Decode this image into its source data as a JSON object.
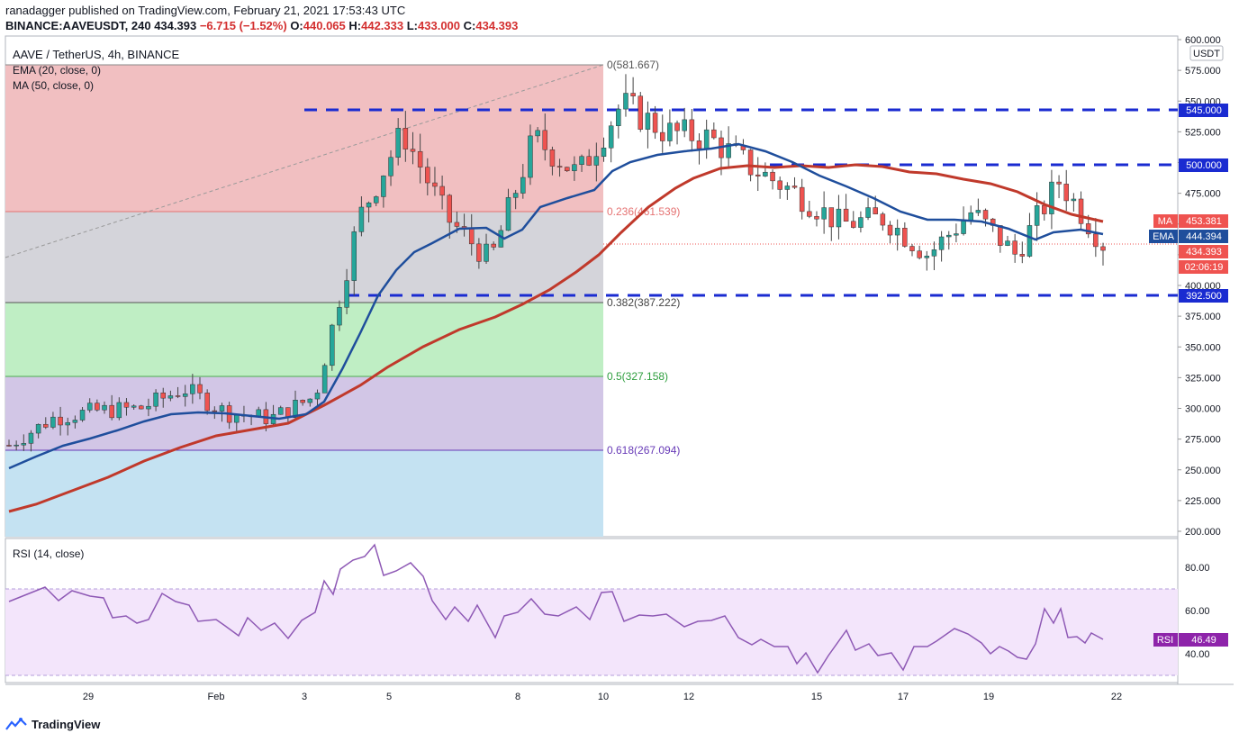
{
  "header": {
    "line1": "ranadagger published on TradingView.com, February 21, 2021 17:53:43 UTC",
    "symbol": "BINANCE:AAVEUSDT, 240",
    "last": "434.393",
    "change": "−6.715 (−1.52%)",
    "o_label": "O:",
    "o": "440.065",
    "h_label": "H:",
    "h": "442.333",
    "l_label": "L:",
    "l": "433.000",
    "c_label": "C:",
    "c": "434.393"
  },
  "legend": {
    "title": "AAVE / TetherUS, 4h, BINANCE",
    "ema": "EMA (20, close, 0)",
    "ma": "MA (50, close, 0)",
    "rsi": "RSI (14, close)"
  },
  "axis": {
    "currency": "USDT",
    "price_ticks": [
      "600.000",
      "575.000",
      "550.000",
      "525.000",
      "500.000",
      "475.000",
      "450.000",
      "425.000",
      "400.000",
      "375.000",
      "350.000",
      "325.000",
      "300.000",
      "275.000",
      "250.000",
      "225.000",
      "200.000"
    ],
    "rsi_ticks": [
      "80.00",
      "60.00",
      "40.00"
    ],
    "date_ticks": [
      "29",
      "Feb",
      "3",
      "5",
      "8",
      "10",
      "12",
      "15",
      "17",
      "19",
      "22"
    ]
  },
  "levels": {
    "l545": "545.000",
    "l500": "500.000",
    "l392": "392.500"
  },
  "badges": {
    "ma_label": "MA",
    "ma_value": "453.381",
    "ema_label": "EMA",
    "ema_value": "444.394",
    "price": "434.393",
    "timer": "02:06:19",
    "rsi_label": "RSI",
    "rsi_value": "46.49"
  },
  "fib": {
    "f0": "0(581.667)",
    "f236": "0.236(461.539)",
    "f382": "0.382(387.222)",
    "f5": "0.5(327.158)",
    "f618": "0.618(267.094)"
  },
  "colors": {
    "up": "#26a69a",
    "down": "#ef5350",
    "ema": "#1f4e9c",
    "ma": "#c0392b",
    "level": "#1a2bd1",
    "rsi": "#7e57c2"
  },
  "brand": "TradingView",
  "chart_data": {
    "type": "candlestick",
    "title": "AAVE / TetherUS, 4h, BINANCE",
    "ylim": [
      200,
      600
    ],
    "x_start": "2021-01-27",
    "x_end": "2021-02-22",
    "close_series": [
      {
        "date": "2021-01-27",
        "close": 270
      },
      {
        "date": "2021-01-28",
        "close": 292
      },
      {
        "date": "2021-01-29",
        "close": 298
      },
      {
        "date": "2021-01-30",
        "close": 300
      },
      {
        "date": "2021-01-31",
        "close": 316
      },
      {
        "date": "2021-02-01",
        "close": 296
      },
      {
        "date": "2021-02-02",
        "close": 292
      },
      {
        "date": "2021-02-03",
        "close": 310
      },
      {
        "date": "2021-02-04",
        "close": 455
      },
      {
        "date": "2021-02-05",
        "close": 525
      },
      {
        "date": "2021-02-06",
        "close": 455
      },
      {
        "date": "2021-02-07",
        "close": 420
      },
      {
        "date": "2021-02-08",
        "close": 520
      },
      {
        "date": "2021-02-09",
        "close": 490
      },
      {
        "date": "2021-02-10",
        "close": 548
      },
      {
        "date": "2021-02-11",
        "close": 525
      },
      {
        "date": "2021-02-12",
        "close": 520
      },
      {
        "date": "2021-02-13",
        "close": 495
      },
      {
        "date": "2021-02-14",
        "close": 475
      },
      {
        "date": "2021-02-15",
        "close": 450
      },
      {
        "date": "2021-02-16",
        "close": 455
      },
      {
        "date": "2021-02-17",
        "close": 425
      },
      {
        "date": "2021-02-18",
        "close": 460
      },
      {
        "date": "2021-02-19",
        "close": 425
      },
      {
        "date": "2021-02-20",
        "close": 485
      },
      {
        "date": "2021-02-21",
        "close": 434
      }
    ],
    "indicators": {
      "ema20_last": 444.394,
      "ma50_last": 453.381,
      "rsi14_last": 46.49
    },
    "fibonacci": [
      {
        "level": "0",
        "price": 581.667
      },
      {
        "level": "0.236",
        "price": 461.539
      },
      {
        "level": "0.382",
        "price": 387.222
      },
      {
        "level": "0.5",
        "price": 327.158
      },
      {
        "level": "0.618",
        "price": 267.094
      }
    ],
    "horizontal_levels": [
      545.0,
      500.0,
      392.5
    ],
    "rsi_ylim": [
      25,
      95
    ],
    "rsi_bands": [
      30,
      70
    ]
  }
}
